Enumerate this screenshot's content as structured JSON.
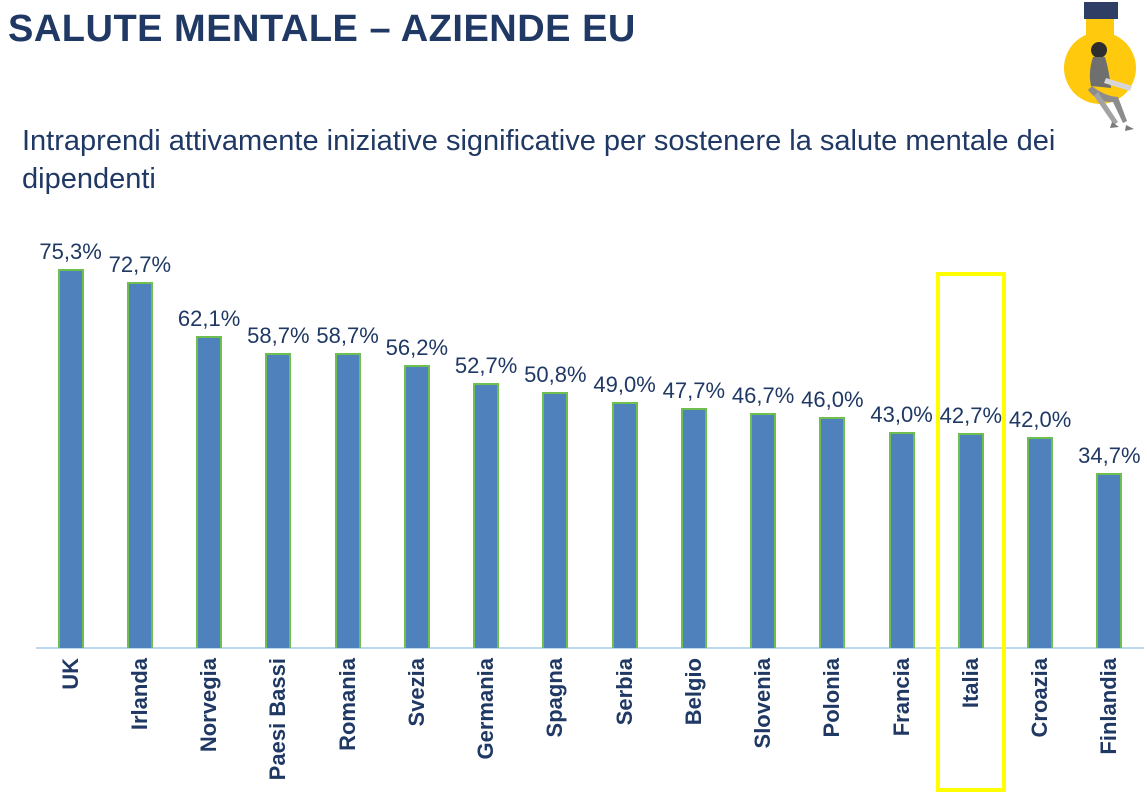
{
  "page": {
    "title": "SALUTE MENTALE – AZIENDE EU",
    "subtitle": "Intraprendi attivamente iniziative significative per sostenere la salute mentale dei dipendenti"
  },
  "decor": {
    "corner_icon": "lightbulb-with-seated-person",
    "bulb_yellow": "#FFC90E",
    "cap_navy": "#2F3E64"
  },
  "chart_data": {
    "type": "bar",
    "title": "",
    "xlabel": "",
    "ylabel": "",
    "categories": [
      "UK",
      "Irlanda",
      "Norvegia",
      "Paesi Bassi",
      "Romania",
      "Svezia",
      "Germania",
      "Spagna",
      "Serbia",
      "Belgio",
      "Slovenia",
      "Polonia",
      "Francia",
      "Italia",
      "Croazia",
      "Finlandia"
    ],
    "values": [
      75.3,
      72.7,
      62.1,
      58.7,
      58.7,
      56.2,
      52.7,
      50.8,
      49.0,
      47.7,
      46.7,
      46.0,
      43.0,
      42.7,
      42.0,
      34.7
    ],
    "value_labels": [
      "75,3%",
      "72,7%",
      "62,1%",
      "58,7%",
      "58,7%",
      "56,2%",
      "52,7%",
      "50,8%",
      "49,0%",
      "47,7%",
      "46,7%",
      "46,0%",
      "43,0%",
      "42,7%",
      "42,0%",
      "34,7%"
    ],
    "highlighted_category": "Italia",
    "ylim": [
      0,
      80
    ],
    "grid": false,
    "legend": false,
    "category_label_rotation": "90-ccw-bottom-to-top",
    "colors": {
      "bar_fill": "#4F81BD",
      "bar_border": "#6EBE50",
      "highlight_box": "#FFFF00",
      "text": "#1F3864",
      "axis_line": "#BDD7EE"
    }
  }
}
